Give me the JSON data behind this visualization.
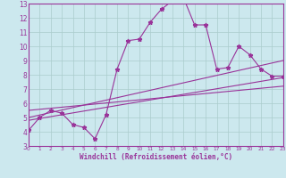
{
  "xlabel": "Windchill (Refroidissement éolien,°C)",
  "bg_color": "#cce8ee",
  "grid_color": "#aacccc",
  "line_color": "#993399",
  "spine_color": "#993399",
  "xmin": 0,
  "xmax": 23,
  "ymin": 3,
  "ymax": 13,
  "xticks": [
    0,
    1,
    2,
    3,
    4,
    5,
    6,
    7,
    8,
    9,
    10,
    11,
    12,
    13,
    14,
    15,
    16,
    17,
    18,
    19,
    20,
    21,
    22,
    23
  ],
  "yticks": [
    3,
    4,
    5,
    6,
    7,
    8,
    9,
    10,
    11,
    12,
    13
  ],
  "line1_x": [
    0,
    1,
    2,
    3,
    4,
    5,
    6,
    7,
    8,
    9,
    10,
    11,
    12,
    13,
    14,
    15,
    16,
    17,
    18,
    19,
    20,
    21,
    22,
    23
  ],
  "line1_y": [
    4.1,
    5.0,
    5.5,
    5.3,
    4.5,
    4.3,
    3.5,
    5.2,
    8.4,
    10.4,
    10.5,
    11.7,
    12.6,
    13.2,
    13.4,
    11.5,
    11.5,
    8.4,
    8.5,
    10.0,
    9.4,
    8.4,
    7.9,
    7.9
  ],
  "line2_x": [
    0,
    23
  ],
  "line2_y": [
    5.0,
    9.0
  ],
  "line3_x": [
    0,
    23
  ],
  "line3_y": [
    4.8,
    7.8
  ],
  "line4_x": [
    0,
    23
  ],
  "line4_y": [
    5.5,
    7.2
  ]
}
